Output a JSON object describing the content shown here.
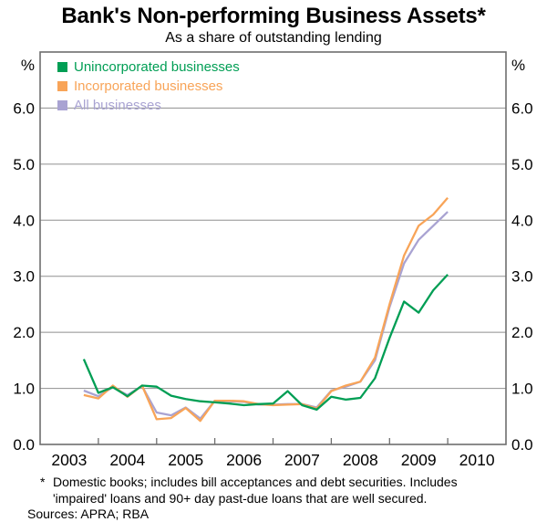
{
  "figure": {
    "title": "Bank's Non-performing Business Assets*",
    "subtitle": "As a share of outstanding lending"
  },
  "legend": {
    "items": [
      {
        "label": "Unincorporated businesses",
        "color": "#009e54"
      },
      {
        "label": "Incorporated businesses",
        "color": "#f8a458"
      },
      {
        "label": "All businesses",
        "color": "#a9a3d2"
      }
    ]
  },
  "axes": {
    "y_unit_left": "%",
    "y_unit_right": "%",
    "y_tick_labels": [
      "6.0",
      "5.0",
      "4.0",
      "3.0",
      "2.0",
      "1.0",
      "0.0"
    ],
    "x_tick_labels": [
      "2003",
      "2004",
      "2005",
      "2006",
      "2007",
      "2008",
      "2009",
      "2010"
    ]
  },
  "footnote": {
    "marker": "*",
    "line1": "Domestic books; includes bill acceptances and debt securities. Includes",
    "line2": "'impaired' loans and 90+ day past-due loans that are well secured.",
    "sources": "Sources: APRA; RBA"
  },
  "style": {
    "grid_color": "#8f8f8f",
    "axis_color": "#6e6e6e",
    "text_color": "#000000",
    "background": "#ffffff"
  },
  "chart_data": {
    "type": "line",
    "title": "Bank's Non-performing Business Assets*",
    "subtitle": "As a share of outstanding lending",
    "ylabel": "%",
    "ylim": [
      0,
      7
    ],
    "xlim": [
      2003,
      2011
    ],
    "grid": true,
    "legend_position": "top-left-inside",
    "y_gridline_values": [
      1,
      2,
      3,
      4,
      5,
      6
    ],
    "y_axis_label_values": [
      6,
      5,
      4,
      3,
      2,
      1,
      0
    ],
    "x_year_tick_values": [
      2004,
      2005,
      2006,
      2007,
      2008,
      2009,
      2010
    ],
    "x_year_label_centers": [
      2003.5,
      2004.5,
      2005.5,
      2006.5,
      2007.5,
      2008.5,
      2009.5,
      2010.5
    ],
    "x_quarters": [
      "Sep 2003",
      "Dec 2003",
      "Mar 2004",
      "Jun 2004",
      "Sep 2004",
      "Dec 2004",
      "Mar 2005",
      "Jun 2005",
      "Sep 2005",
      "Dec 2005",
      "Mar 2006",
      "Jun 2006",
      "Sep 2006",
      "Dec 2006",
      "Mar 2007",
      "Jun 2007",
      "Sep 2007",
      "Dec 2007",
      "Mar 2008",
      "Jun 2008",
      "Sep 2008",
      "Dec 2008",
      "Mar 2009",
      "Jun 2009",
      "Sep 2009",
      "Dec 2009"
    ],
    "x_decimal": [
      2003.75,
      2004.0,
      2004.25,
      2004.5,
      2004.75,
      2005.0,
      2005.25,
      2005.5,
      2005.75,
      2006.0,
      2006.25,
      2006.5,
      2006.75,
      2007.0,
      2007.25,
      2007.5,
      2007.75,
      2008.0,
      2008.25,
      2008.5,
      2008.75,
      2009.0,
      2009.25,
      2009.5,
      2009.75,
      2010.0
    ],
    "series": [
      {
        "id": "unincorporated",
        "name": "Unincorporated businesses",
        "color": "#009e54",
        "values": [
          1.52,
          0.92,
          1.02,
          0.86,
          1.05,
          1.03,
          0.87,
          0.81,
          0.77,
          0.75,
          0.73,
          0.7,
          0.72,
          0.73,
          0.95,
          0.7,
          0.62,
          0.85,
          0.8,
          0.83,
          1.18,
          1.9,
          2.55,
          2.35,
          2.75,
          3.03
        ]
      },
      {
        "id": "incorporated",
        "name": "Incorporated businesses",
        "color": "#f8a458",
        "values": [
          0.88,
          0.82,
          1.05,
          0.85,
          1.05,
          0.45,
          0.47,
          0.65,
          0.42,
          0.78,
          0.78,
          0.77,
          0.72,
          0.7,
          0.71,
          0.72,
          0.64,
          0.95,
          1.05,
          1.12,
          1.55,
          2.5,
          3.37,
          3.9,
          4.1,
          4.4
        ]
      },
      {
        "id": "all-businesses",
        "name": "All businesses",
        "color": "#a9a3d2",
        "values": [
          0.96,
          0.86,
          1.02,
          0.88,
          1.04,
          0.57,
          0.52,
          0.66,
          0.46,
          0.78,
          0.77,
          0.76,
          0.71,
          0.71,
          0.72,
          0.72,
          0.66,
          0.96,
          1.03,
          1.12,
          1.5,
          2.45,
          3.23,
          3.65,
          3.9,
          4.15
        ]
      }
    ]
  }
}
